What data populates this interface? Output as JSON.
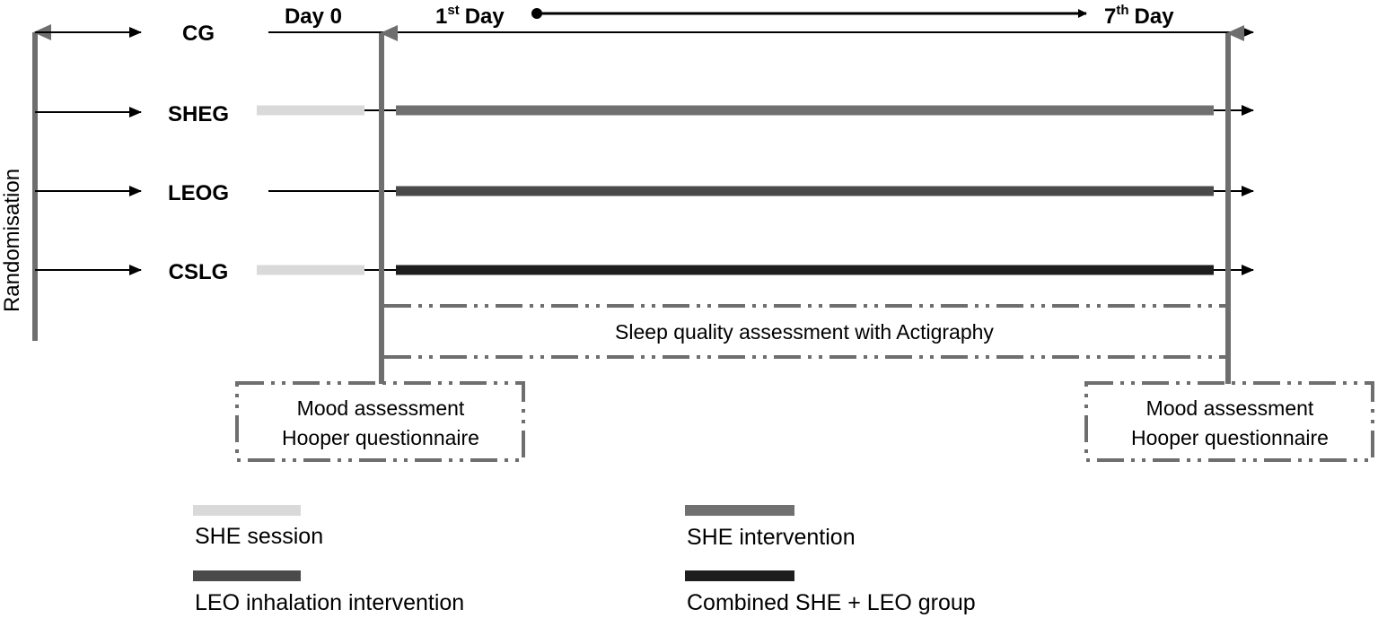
{
  "randomisation_label": "Randomisation",
  "groups": [
    {
      "label": "CG"
    },
    {
      "label": "SHEG"
    },
    {
      "label": "LEOG"
    },
    {
      "label": "CSLG"
    }
  ],
  "timeline": {
    "day0": "Day 0",
    "day1_num": "1",
    "day1_sup": "st",
    "day1_word": "Day",
    "day7_num": "7",
    "day7_sup": "th",
    "day7_word": "Day"
  },
  "sleep_box": {
    "text": "Sleep quality assessment with Actigraphy"
  },
  "assessment_left": {
    "line1": "Mood assessment",
    "line2": "Hooper questionnaire"
  },
  "assessment_right": {
    "line1": "Mood assessment",
    "line2": "Hooper questionnaire"
  },
  "legend": [
    {
      "label": "SHE session",
      "color": "#d9d9d9"
    },
    {
      "label": "SHE intervention",
      "color": "#707070"
    },
    {
      "label": "LEO inhalation intervention",
      "color": "#4a4a4a"
    },
    {
      "label": "Combined SHE + LEO group",
      "color": "#1e1e1e"
    }
  ],
  "colors": {
    "session": "#d9d9d9",
    "she_intervention": "#707070",
    "leo_intervention": "#4a4a4a",
    "combined": "#1e1e1e",
    "gray_arrow": "#6e6e6e",
    "dash_box": "#6e6e6e"
  }
}
